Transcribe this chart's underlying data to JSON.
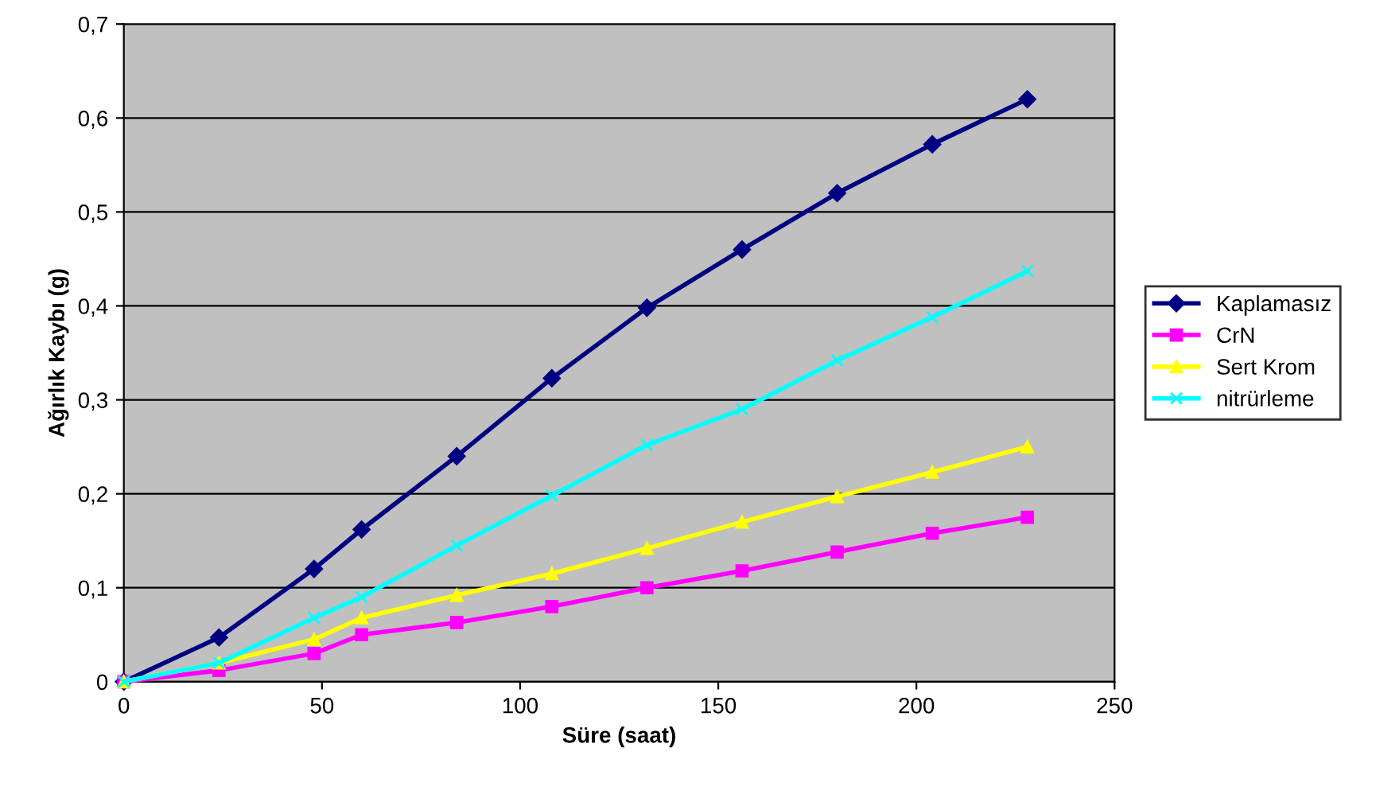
{
  "chart_data": {
    "type": "line",
    "xlabel": "Süre (saat)",
    "ylabel": "Ağırlık Kaybı (g)",
    "xlim": [
      0,
      250
    ],
    "xticks": [
      0,
      50,
      100,
      150,
      200,
      250
    ],
    "ylim": [
      0,
      0.7
    ],
    "yticks": [
      0,
      {
        "value": 0.1,
        "label": "0,1"
      },
      {
        "value": 0.2,
        "label": "0,2"
      },
      {
        "value": 0.3,
        "label": "0,3"
      },
      {
        "value": 0.4,
        "label": "0,4"
      },
      {
        "value": 0.5,
        "label": "0,5"
      },
      {
        "value": 0.6,
        "label": "0,6"
      },
      {
        "value": 0.7,
        "label": "0,7"
      }
    ],
    "grid": "y",
    "legend": "right",
    "line_style": "solid",
    "series": [
      {
        "name": "Kaplamasız",
        "color": "#000080",
        "marker": "diamond",
        "x": [
          0,
          24,
          48,
          60,
          84,
          108,
          132,
          156,
          180,
          204,
          228
        ],
        "values": [
          0,
          0.047,
          0.12,
          0.162,
          0.24,
          0.323,
          0.398,
          0.46,
          0.52,
          0.572,
          0.62
        ]
      },
      {
        "name": "CrN",
        "color": "#ff00ff",
        "marker": "square",
        "x": [
          0,
          24,
          48,
          60,
          84,
          108,
          132,
          156,
          180,
          204,
          228
        ],
        "values": [
          0,
          0.012,
          0.03,
          0.05,
          0.063,
          0.08,
          0.1,
          0.118,
          0.138,
          0.158,
          0.175
        ]
      },
      {
        "name": "Sert Krom",
        "color": "#ffff00",
        "marker": "triangle",
        "x": [
          0,
          24,
          48,
          60,
          84,
          108,
          132,
          156,
          180,
          204,
          228
        ],
        "values": [
          0,
          0.02,
          0.045,
          0.068,
          0.092,
          0.115,
          0.142,
          0.17,
          0.197,
          0.223,
          0.25
        ]
      },
      {
        "name": "nitrürleme",
        "color": "#00ffff",
        "marker": "cross",
        "x": [
          0,
          24,
          48,
          60,
          84,
          108,
          132,
          156,
          180,
          204,
          228
        ],
        "values": [
          0,
          0.02,
          0.068,
          0.09,
          0.145,
          0.198,
          0.252,
          0.29,
          0.342,
          0.388,
          0.437
        ]
      }
    ]
  }
}
